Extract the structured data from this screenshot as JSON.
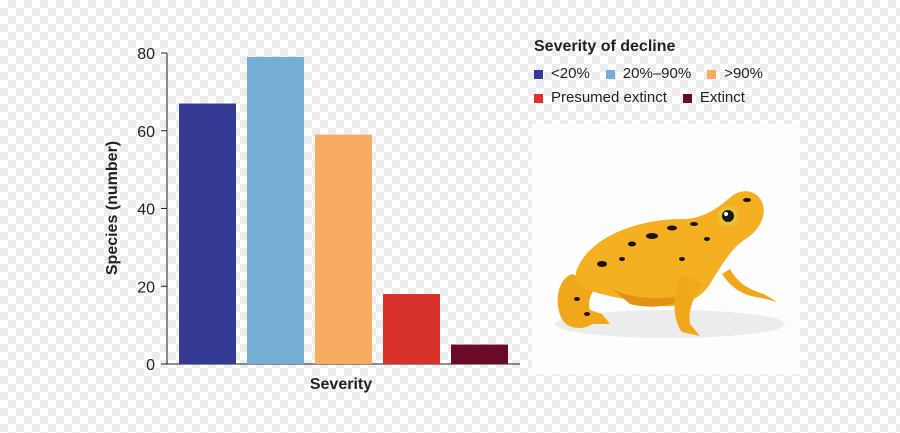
{
  "chart_data": {
    "type": "bar",
    "categories": [
      "<20%",
      "20%–90%",
      ">90%",
      "Presumed extinct",
      "Extinct"
    ],
    "values": [
      67,
      79,
      59,
      18,
      5
    ],
    "colors": [
      "#343a94",
      "#74aed4",
      "#f7ac62",
      "#d9322b",
      "#6a0a26"
    ],
    "xlabel": "Severity",
    "ylabel": "Species (number)",
    "ylim": [
      0,
      80
    ],
    "yticks": [
      0,
      20,
      40,
      60,
      80
    ],
    "grid": false,
    "legend": {
      "title": "Severity of decline",
      "placement": "top-right",
      "rows": [
        [
          "<20%",
          "20%–90%",
          ">90%"
        ],
        [
          "Presumed extinct",
          "Extinct"
        ]
      ]
    }
  },
  "image": {
    "icon": "golden-frog-photo"
  }
}
